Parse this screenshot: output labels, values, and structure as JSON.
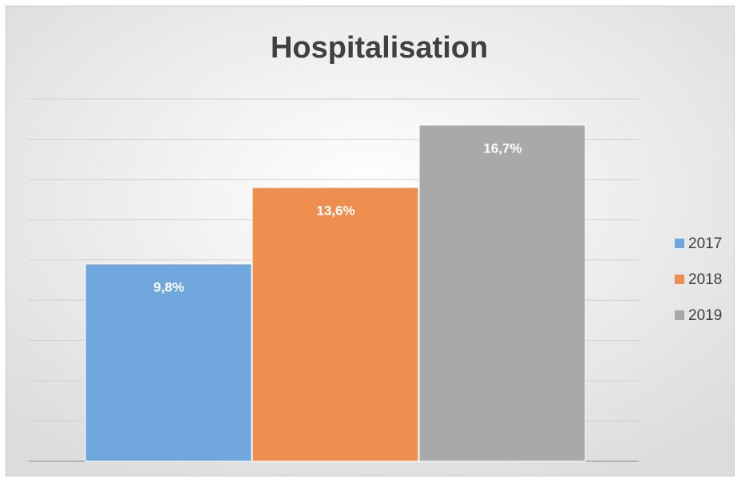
{
  "chart_data": {
    "type": "bar",
    "title": "Hospitalisation",
    "categories": [
      null
    ],
    "series": [
      {
        "name": "2017",
        "color": "#6fa6dc",
        "values": [
          9.8
        ],
        "value_labels": [
          "9,8%"
        ]
      },
      {
        "name": "2018",
        "color": "#ef8f4f",
        "values": [
          13.6
        ],
        "value_labels": [
          "13,6%"
        ]
      },
      {
        "name": "2019",
        "color": "#a9a9a9",
        "values": [
          16.7
        ],
        "value_labels": [
          "16,7%"
        ]
      }
    ],
    "ylim": [
      0,
      18
    ],
    "yticks": [
      0,
      2,
      4,
      6,
      8,
      10,
      12,
      14,
      16,
      18
    ],
    "grid": true,
    "legend": "right"
  }
}
